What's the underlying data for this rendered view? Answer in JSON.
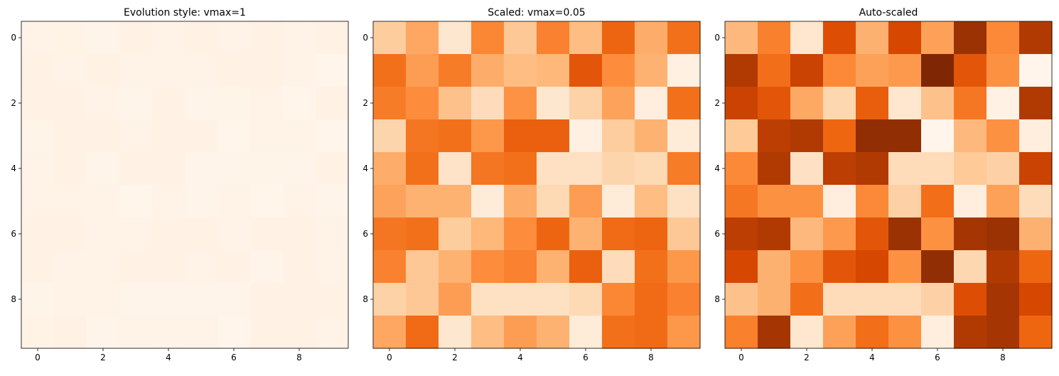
{
  "figure": {
    "colormap": "Oranges",
    "colormap_stops": [
      "#fff5eb",
      "#fee6ce",
      "#fdd0a2",
      "#fdae6b",
      "#fd8d3c",
      "#f16913",
      "#d94801",
      "#a63603",
      "#7f2704"
    ]
  },
  "chart_data": [
    {
      "type": "heatmap",
      "title": "Evolution style: vmax=1",
      "vmin": 0,
      "vmax": 1,
      "xticks": [
        "0",
        "2",
        "4",
        "6",
        "8"
      ],
      "yticks": [
        "0",
        "2",
        "4",
        "6",
        "8"
      ],
      "xlim": [
        -0.5,
        9.5
      ],
      "ylim": [
        9.5,
        -0.5
      ],
      "colorbar": false,
      "matrix": [
        [
          0.013,
          0.02,
          0.006,
          0.026,
          0.014,
          0.027,
          0.016,
          0.032,
          0.019,
          0.03
        ],
        [
          0.03,
          0.022,
          0.028,
          0.019,
          0.016,
          0.017,
          0.035,
          0.025,
          0.018,
          0.002
        ],
        [
          0.028,
          0.025,
          0.015,
          0.009,
          0.024,
          0.006,
          0.012,
          0.021,
          0.003,
          0.03
        ],
        [
          0.011,
          0.029,
          0.03,
          0.023,
          0.033,
          0.033,
          0.002,
          0.013,
          0.018,
          0.004
        ],
        [
          0.019,
          0.03,
          0.007,
          0.029,
          0.03,
          0.008,
          0.008,
          0.011,
          0.01,
          0.028
        ],
        [
          0.021,
          0.018,
          0.018,
          0.004,
          0.019,
          0.01,
          0.022,
          0.004,
          0.016,
          0.008
        ],
        [
          0.029,
          0.03,
          0.013,
          0.017,
          0.025,
          0.032,
          0.018,
          0.031,
          0.032,
          0.014
        ],
        [
          0.027,
          0.014,
          0.018,
          0.025,
          0.027,
          0.018,
          0.033,
          0.009,
          0.03,
          0.023
        ],
        [
          0.012,
          0.014,
          0.022,
          0.008,
          0.008,
          0.008,
          0.01,
          0.026,
          0.031,
          0.027
        ],
        [
          0.02,
          0.031,
          0.006,
          0.016,
          0.022,
          0.018,
          0.004,
          0.03,
          0.031,
          0.023
        ]
      ]
    },
    {
      "type": "heatmap",
      "title": "Scaled: vmax=0.05",
      "vmin": 0,
      "vmax": 0.05,
      "xticks": [
        "0",
        "2",
        "4",
        "6",
        "8"
      ],
      "yticks": [
        "0",
        "2",
        "4",
        "6",
        "8"
      ],
      "xlim": [
        -0.5,
        9.5
      ],
      "ylim": [
        9.5,
        -0.5
      ],
      "colorbar": false,
      "matrix": [
        [
          0.013,
          0.02,
          0.006,
          0.026,
          0.014,
          0.027,
          0.016,
          0.032,
          0.019,
          0.03
        ],
        [
          0.03,
          0.022,
          0.028,
          0.019,
          0.016,
          0.017,
          0.035,
          0.025,
          0.018,
          0.002
        ],
        [
          0.028,
          0.025,
          0.015,
          0.009,
          0.024,
          0.006,
          0.012,
          0.021,
          0.003,
          0.03
        ],
        [
          0.011,
          0.029,
          0.03,
          0.023,
          0.033,
          0.033,
          0.002,
          0.013,
          0.018,
          0.004
        ],
        [
          0.019,
          0.03,
          0.007,
          0.029,
          0.03,
          0.008,
          0.008,
          0.011,
          0.01,
          0.028
        ],
        [
          0.021,
          0.018,
          0.018,
          0.004,
          0.019,
          0.01,
          0.022,
          0.004,
          0.016,
          0.008
        ],
        [
          0.029,
          0.03,
          0.013,
          0.017,
          0.025,
          0.032,
          0.018,
          0.031,
          0.032,
          0.014
        ],
        [
          0.027,
          0.014,
          0.018,
          0.025,
          0.027,
          0.018,
          0.033,
          0.009,
          0.03,
          0.023
        ],
        [
          0.012,
          0.014,
          0.022,
          0.008,
          0.008,
          0.008,
          0.01,
          0.026,
          0.031,
          0.027
        ],
        [
          0.02,
          0.031,
          0.006,
          0.016,
          0.022,
          0.018,
          0.004,
          0.03,
          0.031,
          0.023
        ]
      ]
    },
    {
      "type": "heatmap",
      "title": "Auto-scaled",
      "vmin": null,
      "vmax": null,
      "xticks": [
        "0",
        "2",
        "4",
        "6",
        "8"
      ],
      "yticks": [
        "0",
        "2",
        "4",
        "6",
        "8"
      ],
      "xlim": [
        -0.5,
        9.5
      ],
      "ylim": [
        9.5,
        -0.5
      ],
      "colorbar": false,
      "matrix": [
        [
          0.013,
          0.02,
          0.006,
          0.026,
          0.014,
          0.027,
          0.016,
          0.032,
          0.019,
          0.03
        ],
        [
          0.03,
          0.022,
          0.028,
          0.019,
          0.016,
          0.017,
          0.035,
          0.025,
          0.018,
          0.002
        ],
        [
          0.028,
          0.025,
          0.015,
          0.009,
          0.024,
          0.006,
          0.012,
          0.021,
          0.003,
          0.03
        ],
        [
          0.011,
          0.029,
          0.03,
          0.023,
          0.033,
          0.033,
          0.002,
          0.013,
          0.018,
          0.004
        ],
        [
          0.019,
          0.03,
          0.007,
          0.029,
          0.03,
          0.008,
          0.008,
          0.011,
          0.01,
          0.028
        ],
        [
          0.021,
          0.018,
          0.018,
          0.004,
          0.019,
          0.01,
          0.022,
          0.004,
          0.016,
          0.008
        ],
        [
          0.029,
          0.03,
          0.013,
          0.017,
          0.025,
          0.032,
          0.018,
          0.031,
          0.032,
          0.014
        ],
        [
          0.027,
          0.014,
          0.018,
          0.025,
          0.027,
          0.018,
          0.033,
          0.009,
          0.03,
          0.023
        ],
        [
          0.012,
          0.014,
          0.022,
          0.008,
          0.008,
          0.008,
          0.01,
          0.026,
          0.031,
          0.027
        ],
        [
          0.02,
          0.031,
          0.006,
          0.016,
          0.022,
          0.018,
          0.004,
          0.03,
          0.031,
          0.023
        ]
      ]
    }
  ]
}
